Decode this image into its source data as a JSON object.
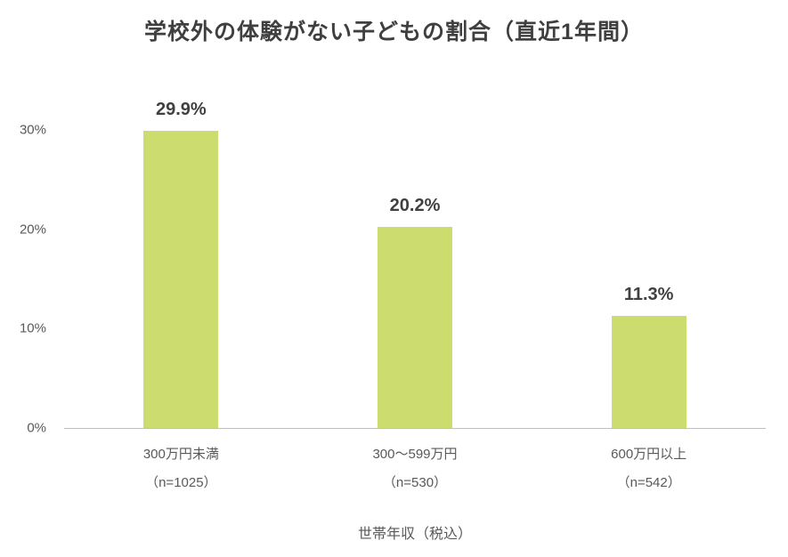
{
  "chart_data": {
    "type": "bar",
    "title": "学校外の体験がない子どもの割合（直近1年間）",
    "categories": [
      "300万円未満",
      "300〜599万円",
      "600万円以上"
    ],
    "category_sublabels": [
      "（n=1025）",
      "（n=530）",
      "（n=542）"
    ],
    "values": [
      29.9,
      20.2,
      11.3
    ],
    "value_labels": [
      "29.9%",
      "20.2%",
      "11.3%"
    ],
    "xlabel": "世帯年収（税込）",
    "ylabel": "",
    "ylim": [
      0,
      30
    ],
    "yticks": [
      "0%",
      "10%",
      "20%",
      "30%"
    ],
    "ytick_values": [
      0,
      10,
      20,
      30
    ],
    "bar_color": "#cddc6e",
    "grid": false,
    "legend": false
  }
}
